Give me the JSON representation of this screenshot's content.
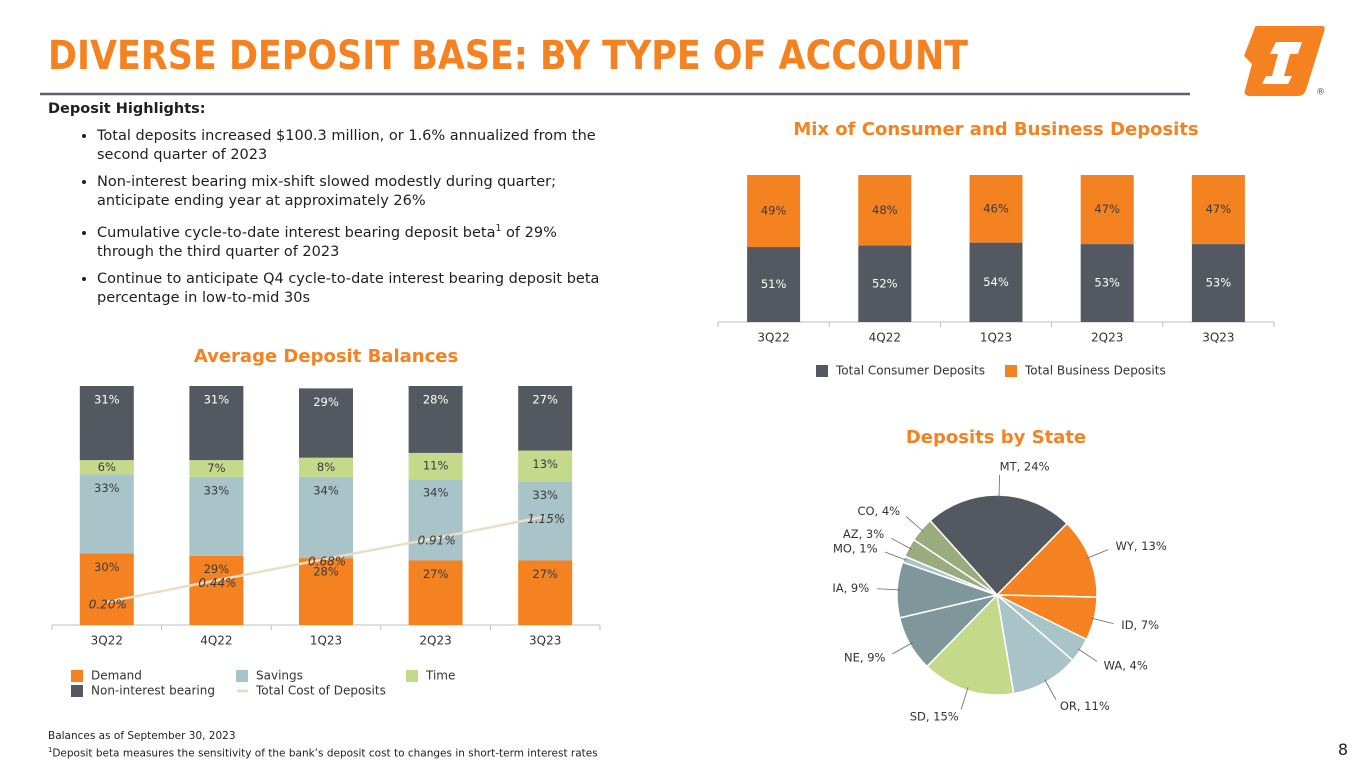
{
  "header": {
    "title": "DIVERSE DEPOSIT BASE: BY TYPE OF ACCOUNT",
    "logo_mark": "®"
  },
  "highlights": {
    "heading": "Deposit Highlights:",
    "bullets": [
      {
        "text": "Total deposits increased $100.3 million, or 1.6% annualized from the second quarter of 2023"
      },
      {
        "text": "Non-interest bearing mix-shift slowed modestly during quarter; anticipate ending year at approximately 26%"
      },
      {
        "text": "Cumulative cycle-to-date interest bearing deposit beta",
        "sup": "1",
        "rest": " of 29% through the third quarter of 2023"
      },
      {
        "text": "Continue to anticipate Q4 cycle-to-date interest bearing deposit beta percentage in low-to-mid 30s"
      }
    ]
  },
  "footnotes": {
    "balances": "Balances as of September 30, 2023",
    "sup": "1",
    "beta": "Deposit beta measures the sensitivity of the bank’s deposit cost to changes in short-term interest rates"
  },
  "page_number": "8",
  "chart_data": [
    {
      "type": "bar",
      "stacked": true,
      "title": "Mix of Consumer and Business Deposits",
      "categories": [
        "3Q22",
        "4Q22",
        "1Q23",
        "2Q23",
        "3Q23"
      ],
      "series": [
        {
          "name": "Total Consumer Deposits",
          "color": "#545861",
          "label_color": "#ffffff",
          "values": [
            51,
            52,
            54,
            53,
            53
          ],
          "value_labels": [
            "51%",
            "52%",
            "54%",
            "53%",
            "53%"
          ]
        },
        {
          "name": "Total Business Deposits",
          "color": "#f58220",
          "label_color": "#3a3a3a",
          "values": [
            49,
            48,
            46,
            47,
            47
          ],
          "value_labels": [
            "49%",
            "48%",
            "46%",
            "47%",
            "47%"
          ]
        }
      ]
    },
    {
      "type": "bar",
      "stacked": true,
      "title": "Average Deposit Balances",
      "categories": [
        "3Q22",
        "4Q22",
        "1Q23",
        "2Q23",
        "3Q23"
      ],
      "series": [
        {
          "name": "Demand",
          "color": "#f58220",
          "label_color": "#3a3a3a",
          "values": [
            30,
            29,
            28,
            27,
            27
          ],
          "value_labels": [
            "30%",
            "29%",
            "28%",
            "27%",
            "27%"
          ]
        },
        {
          "name": "Savings",
          "color": "#a9c4c8",
          "label_color": "#3a3a3a",
          "values": [
            33,
            33,
            34,
            34,
            33
          ],
          "value_labels": [
            "33%",
            "33%",
            "34%",
            "34%",
            "33%"
          ]
        },
        {
          "name": "Time",
          "color": "#c5d98b",
          "label_color": "#3a3a3a",
          "values": [
            6,
            7,
            8,
            11,
            13
          ],
          "value_labels": [
            "6%",
            "7%",
            "8%",
            "11%",
            "13%"
          ]
        },
        {
          "name": "Non-interest bearing",
          "color": "#545861",
          "label_color": "#ffffff",
          "values": [
            31,
            31,
            29,
            28,
            27
          ],
          "value_labels": [
            "31%",
            "31%",
            "29%",
            "28%",
            "27%"
          ]
        },
        {
          "name": "Total Cost of Deposits",
          "type": "line",
          "color": "#eadfc6",
          "label_color": "#3a3a3a",
          "values": [
            0.2,
            0.44,
            0.68,
            0.91,
            1.15
          ],
          "value_labels": [
            "0.20%",
            "0.44%",
            "0.68%",
            "0.91%",
            "1.15%"
          ]
        }
      ]
    },
    {
      "type": "pie",
      "title": "Deposits by State",
      "values": [
        24,
        13,
        7,
        4,
        11,
        15,
        9,
        9,
        1,
        3,
        4
      ],
      "value_labels": [
        "MT, 24%",
        "WY, 13%",
        "ID, 7%",
        "WA, 4%",
        "OR, 11%",
        "SD, 15%",
        "NE, 9%",
        "IA, 9%",
        "MO, 1%",
        "AZ, 3%",
        "CO, 4%"
      ],
      "colors": [
        "#545861",
        "#f58220",
        "#f58220",
        "#a9c4c8",
        "#a9c4c8",
        "#c5d98b",
        "#7f979a",
        "#7f979a",
        "#a9c4c8",
        "#9aab7d",
        "#9aab7d"
      ]
    }
  ]
}
